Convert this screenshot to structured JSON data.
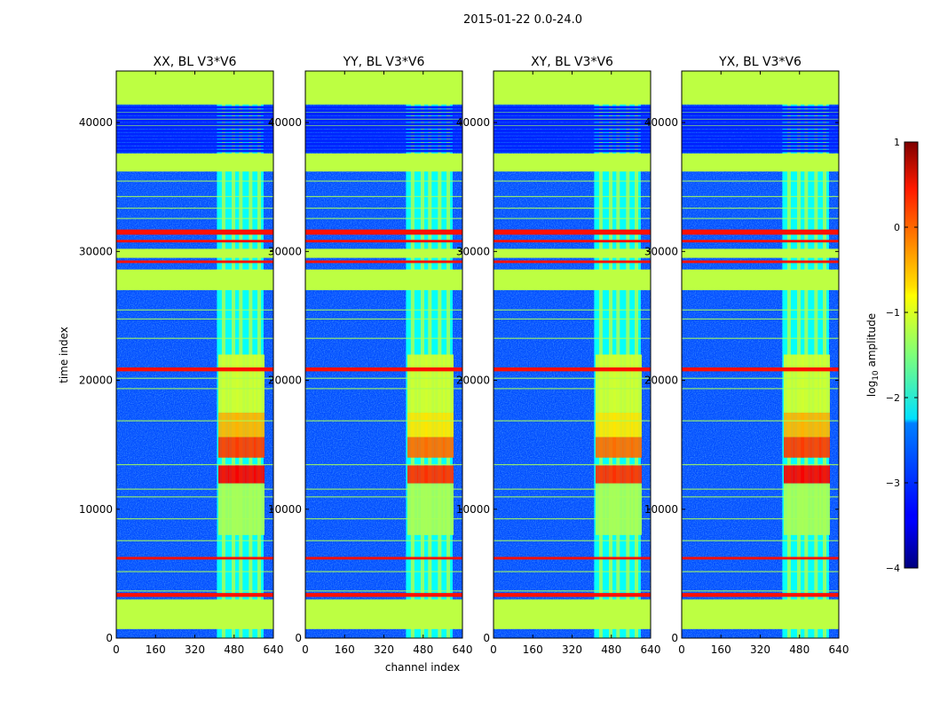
{
  "figure": {
    "suptitle": "2015-01-22 0.0-24.0",
    "xlabel": "channel index",
    "ylabel": "time index"
  },
  "chart_data": {
    "type": "heatmap",
    "colormap": "jet",
    "x_range": [
      0,
      640
    ],
    "y_range": [
      0,
      44000
    ],
    "x_ticks": [
      "0",
      "160",
      "320",
      "480",
      "640"
    ],
    "y_ticks": [
      "0",
      "10000",
      "20000",
      "30000",
      "40000"
    ],
    "panels": [
      {
        "title": "XX, BL V3*V6",
        "active_band": [
          410,
          600
        ],
        "peak_level": 0.4
      },
      {
        "title": "YY, BL V3*V6",
        "active_band": [
          410,
          600
        ],
        "peak_level": 0.15
      },
      {
        "title": "XY, BL V3*V6",
        "active_band": [
          410,
          600
        ],
        "peak_level": 0.15
      },
      {
        "title": "YX, BL V3*V6",
        "active_band": [
          410,
          600
        ],
        "peak_level": 0.4
      }
    ],
    "colorbar": {
      "label": "log10 amplitude",
      "label_main": "log",
      "label_sub": "10",
      "label_rest": " amplitude",
      "range": [
        -4,
        1
      ],
      "ticks": [
        "1",
        "0",
        "−1",
        "−2",
        "−3",
        "−4"
      ]
    }
  }
}
